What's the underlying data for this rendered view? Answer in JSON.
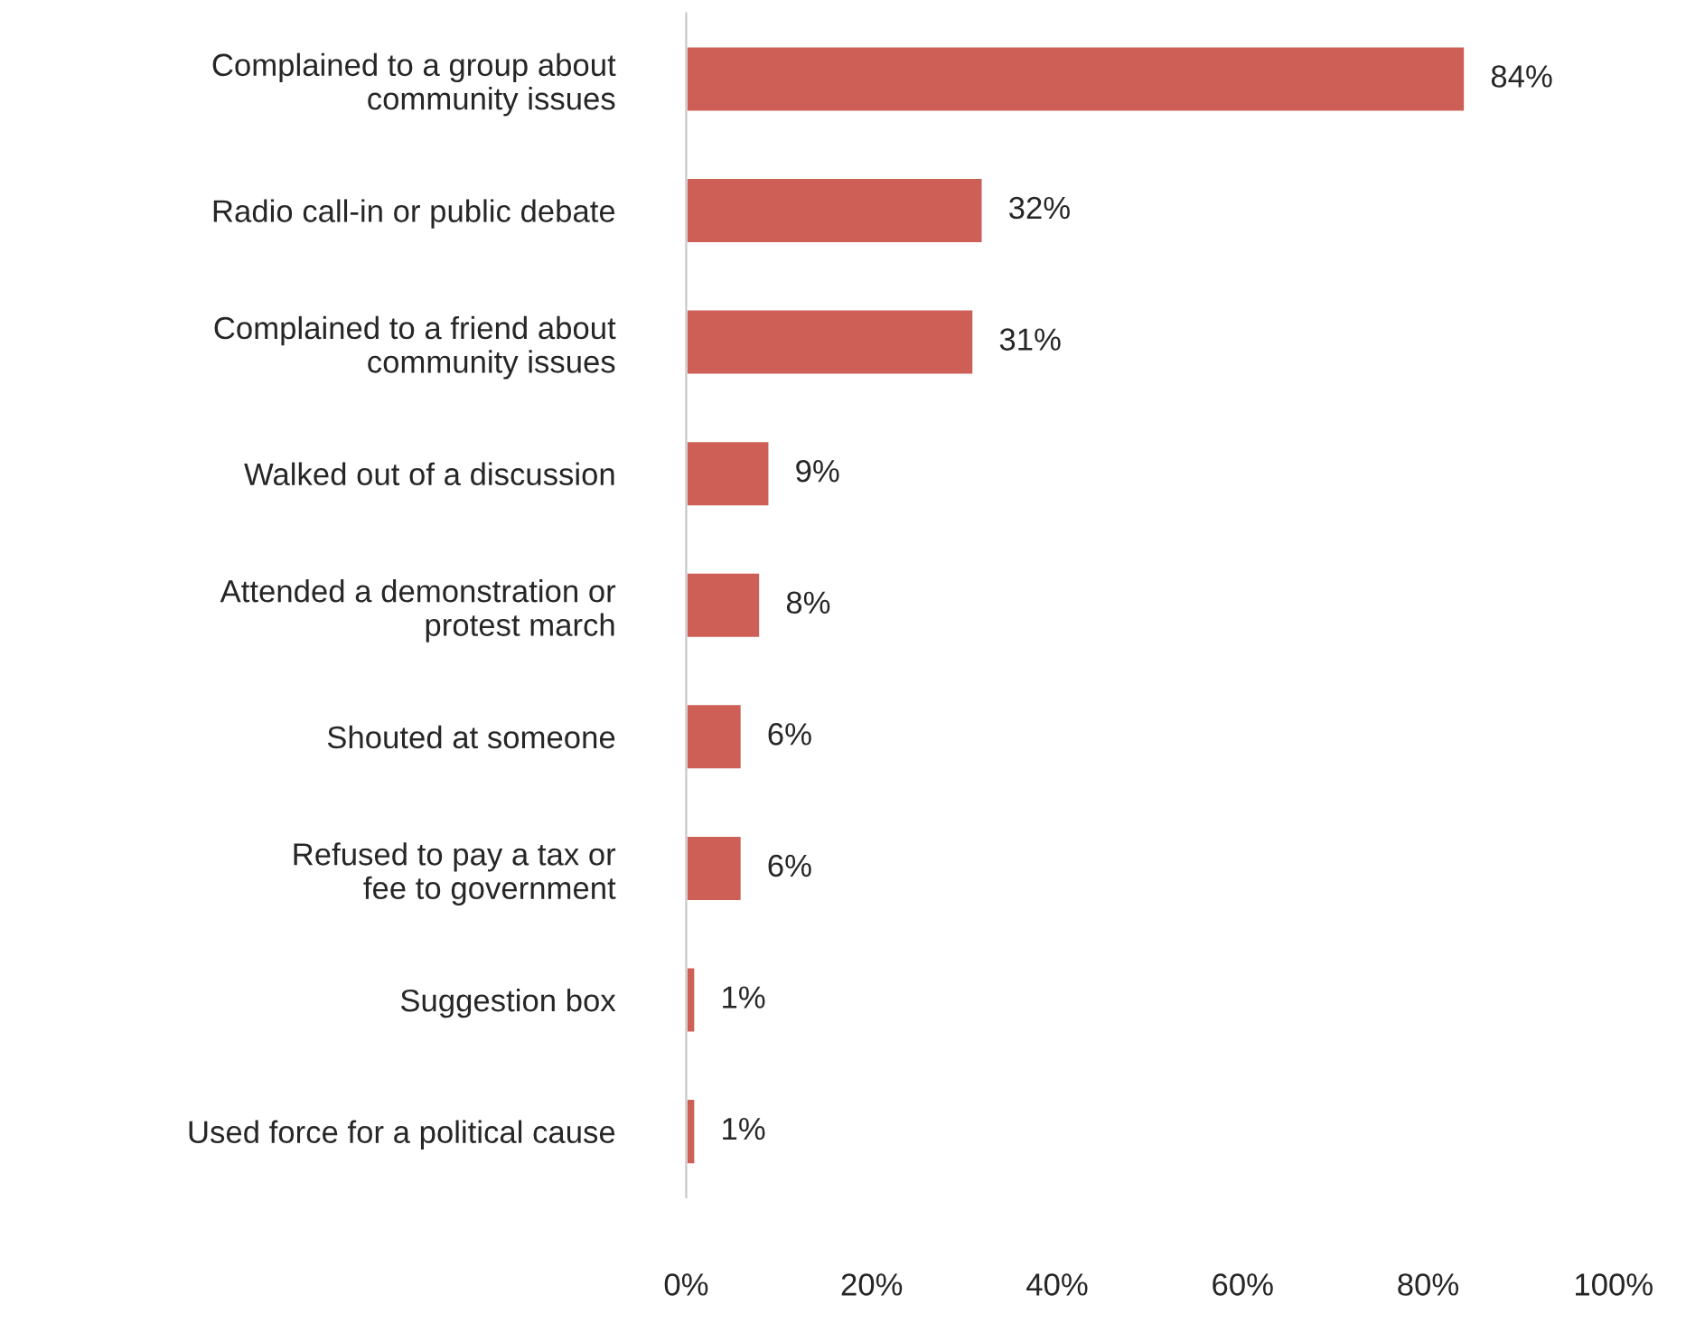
{
  "chart_data": {
    "type": "bar",
    "orientation": "horizontal",
    "categories": [
      "Complained to a group about\ncommunity issues",
      "Radio call-in or public debate",
      "Complained to a friend about\ncommunity issues",
      "Walked out of a discussion",
      "Attended a demonstration or\nprotest march",
      "Shouted at someone",
      "Refused to pay a tax or\nfee to government",
      "Suggestion box",
      "Used force for a political cause"
    ],
    "values": [
      84,
      32,
      31,
      9,
      8,
      6,
      6,
      1,
      1
    ],
    "value_labels": [
      "84%",
      "32%",
      "31%",
      "9%",
      "8%",
      "6%",
      "6%",
      "1%",
      "1%"
    ],
    "color": "#cd5f57",
    "xlim": [
      0,
      100
    ],
    "xticks": [
      {
        "value": 0,
        "label": "0%"
      },
      {
        "value": 20,
        "label": "20%"
      },
      {
        "value": 40,
        "label": "40%"
      },
      {
        "value": 60,
        "label": "60%"
      },
      {
        "value": 80,
        "label": "80%"
      },
      {
        "value": 100,
        "label": "100%"
      }
    ],
    "grid": false,
    "legend": false
  }
}
